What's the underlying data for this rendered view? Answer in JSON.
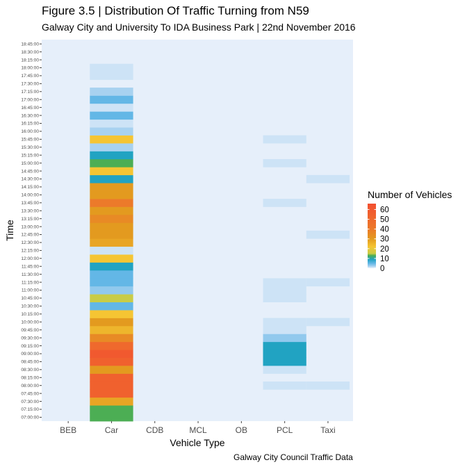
{
  "chart_data": {
    "type": "heatmap",
    "title": "Figure 3.5 | Distribution Of Traffic Turning from N59",
    "subtitle": "Galway City and University To IDA Business Park | 22nd November 2016",
    "xlabel": "Vehicle Type",
    "ylabel": "Time",
    "caption": "Galway City Council Traffic Data",
    "categories": [
      "BEB",
      "Car",
      "CDB",
      "MCL",
      "OB",
      "PCL",
      "Taxi"
    ],
    "times": [
      "07:00:00",
      "07:15:00",
      "07:30:00",
      "07:45:00",
      "08:00:00",
      "08:15:00",
      "08:30:00",
      "08:45:00",
      "09:00:00",
      "09:15:00",
      "09:30:00",
      "09:45:00",
      "10:00:00",
      "10:15:00",
      "10:30:00",
      "10:45:00",
      "11:00:00",
      "11:15:00",
      "11:30:00",
      "11:45:00",
      "12:00:00",
      "12:15:00",
      "12:30:00",
      "12:45:00",
      "13:00:00",
      "13:15:00",
      "13:30:00",
      "13:45:00",
      "14:00:00",
      "14:15:00",
      "14:30:00",
      "14:45:00",
      "15:00:00",
      "15:15:00",
      "15:30:00",
      "15:45:00",
      "16:00:00",
      "16:15:00",
      "16:30:00",
      "16:45:00",
      "17:00:00",
      "17:15:00",
      "17:30:00",
      "17:45:00",
      "18:00:00",
      "18:15:00",
      "18:30:00",
      "18:45:00"
    ],
    "values": [
      {
        "vehicle": "Car",
        "time": "07:00:00",
        "count": 13
      },
      {
        "vehicle": "Car",
        "time": "07:15:00",
        "count": 13
      },
      {
        "vehicle": "Car",
        "time": "07:30:00",
        "count": 28
      },
      {
        "vehicle": "Car",
        "time": "07:45:00",
        "count": 55
      },
      {
        "vehicle": "Car",
        "time": "08:00:00",
        "count": 55
      },
      {
        "vehicle": "Car",
        "time": "08:15:00",
        "count": 55
      },
      {
        "vehicle": "Car",
        "time": "08:30:00",
        "count": 30
      },
      {
        "vehicle": "Car",
        "time": "08:45:00",
        "count": 55
      },
      {
        "vehicle": "Car",
        "time": "09:00:00",
        "count": 60
      },
      {
        "vehicle": "Car",
        "time": "09:15:00",
        "count": 50
      },
      {
        "vehicle": "Car",
        "time": "09:30:00",
        "count": 35
      },
      {
        "vehicle": "Car",
        "time": "09:45:00",
        "count": 25
      },
      {
        "vehicle": "Car",
        "time": "10:00:00",
        "count": 30
      },
      {
        "vehicle": "Car",
        "time": "10:15:00",
        "count": 22
      },
      {
        "vehicle": "Car",
        "time": "10:30:00",
        "count": 5
      },
      {
        "vehicle": "Car",
        "time": "10:45:00",
        "count": 15
      },
      {
        "vehicle": "Car",
        "time": "11:00:00",
        "count": 3
      },
      {
        "vehicle": "Car",
        "time": "11:15:00",
        "count": 5
      },
      {
        "vehicle": "Car",
        "time": "11:30:00",
        "count": 5
      },
      {
        "vehicle": "Car",
        "time": "11:45:00",
        "count": 9
      },
      {
        "vehicle": "Car",
        "time": "12:00:00",
        "count": 22
      },
      {
        "vehicle": "Car",
        "time": "12:15:00",
        "count": 1
      },
      {
        "vehicle": "Car",
        "time": "12:30:00",
        "count": 28
      },
      {
        "vehicle": "Car",
        "time": "12:45:00",
        "count": 30
      },
      {
        "vehicle": "Car",
        "time": "13:00:00",
        "count": 30
      },
      {
        "vehicle": "Car",
        "time": "13:15:00",
        "count": 35
      },
      {
        "vehicle": "Car",
        "time": "13:30:00",
        "count": 30
      },
      {
        "vehicle": "Car",
        "time": "13:45:00",
        "count": 40
      },
      {
        "vehicle": "Car",
        "time": "14:00:00",
        "count": 30
      },
      {
        "vehicle": "Car",
        "time": "14:15:00",
        "count": 30
      },
      {
        "vehicle": "Car",
        "time": "14:30:00",
        "count": 9
      },
      {
        "vehicle": "Car",
        "time": "14:45:00",
        "count": 22
      },
      {
        "vehicle": "Car",
        "time": "15:00:00",
        "count": 13
      },
      {
        "vehicle": "Car",
        "time": "15:15:00",
        "count": 9
      },
      {
        "vehicle": "Car",
        "time": "15:30:00",
        "count": 2
      },
      {
        "vehicle": "Car",
        "time": "15:45:00",
        "count": 22
      },
      {
        "vehicle": "Car",
        "time": "16:00:00",
        "count": 2
      },
      {
        "vehicle": "Car",
        "time": "16:15:00",
        "count": 1
      },
      {
        "vehicle": "Car",
        "time": "16:30:00",
        "count": 5
      },
      {
        "vehicle": "Car",
        "time": "16:45:00",
        "count": 1
      },
      {
        "vehicle": "Car",
        "time": "17:00:00",
        "count": 5
      },
      {
        "vehicle": "Car",
        "time": "17:15:00",
        "count": 2
      },
      {
        "vehicle": "Car",
        "time": "17:45:00",
        "count": 1
      },
      {
        "vehicle": "Car",
        "time": "18:00:00",
        "count": 1
      },
      {
        "vehicle": "PCL",
        "time": "08:00:00",
        "count": 1
      },
      {
        "vehicle": "PCL",
        "time": "08:30:00",
        "count": 1
      },
      {
        "vehicle": "PCL",
        "time": "08:45:00",
        "count": 9
      },
      {
        "vehicle": "PCL",
        "time": "09:00:00",
        "count": 9
      },
      {
        "vehicle": "PCL",
        "time": "09:15:00",
        "count": 9
      },
      {
        "vehicle": "PCL",
        "time": "09:30:00",
        "count": 3
      },
      {
        "vehicle": "PCL",
        "time": "09:45:00",
        "count": 1
      },
      {
        "vehicle": "PCL",
        "time": "10:00:00",
        "count": 1
      },
      {
        "vehicle": "PCL",
        "time": "10:45:00",
        "count": 1
      },
      {
        "vehicle": "PCL",
        "time": "11:00:00",
        "count": 1
      },
      {
        "vehicle": "PCL",
        "time": "11:15:00",
        "count": 1
      },
      {
        "vehicle": "PCL",
        "time": "13:45:00",
        "count": 1
      },
      {
        "vehicle": "PCL",
        "time": "15:00:00",
        "count": 1
      },
      {
        "vehicle": "PCL",
        "time": "15:45:00",
        "count": 1
      },
      {
        "vehicle": "Taxi",
        "time": "08:00:00",
        "count": 1
      },
      {
        "vehicle": "Taxi",
        "time": "10:00:00",
        "count": 1
      },
      {
        "vehicle": "Taxi",
        "time": "11:15:00",
        "count": 1
      },
      {
        "vehicle": "Taxi",
        "time": "12:45:00",
        "count": 1
      },
      {
        "vehicle": "Taxi",
        "time": "14:30:00",
        "count": 1
      }
    ],
    "legend": {
      "title": "Number of Vehicles",
      "placement": "right",
      "breaks": [
        0,
        10,
        20,
        30,
        40,
        50,
        60
      ],
      "labels": [
        "0",
        "10",
        "20",
        "30",
        "40",
        "50",
        "60"
      ],
      "range": [
        0,
        66
      ]
    },
    "color_scale": [
      {
        "value": 0,
        "color": "#e6f0fa"
      },
      {
        "value": 1,
        "color": "#cde3f6"
      },
      {
        "value": 2,
        "color": "#a8d2f0"
      },
      {
        "value": 5,
        "color": "#63b7e6"
      },
      {
        "value": 9,
        "color": "#21a3c2"
      },
      {
        "value": 13,
        "color": "#4cae54"
      },
      {
        "value": 15,
        "color": "#c9cc46"
      },
      {
        "value": 22,
        "color": "#f5c533"
      },
      {
        "value": 30,
        "color": "#e39a1f"
      },
      {
        "value": 40,
        "color": "#ec7a2a"
      },
      {
        "value": 55,
        "color": "#f0612e"
      },
      {
        "value": 66,
        "color": "#f24f31"
      }
    ],
    "panel_background": "#e6effa",
    "grid": false
  }
}
